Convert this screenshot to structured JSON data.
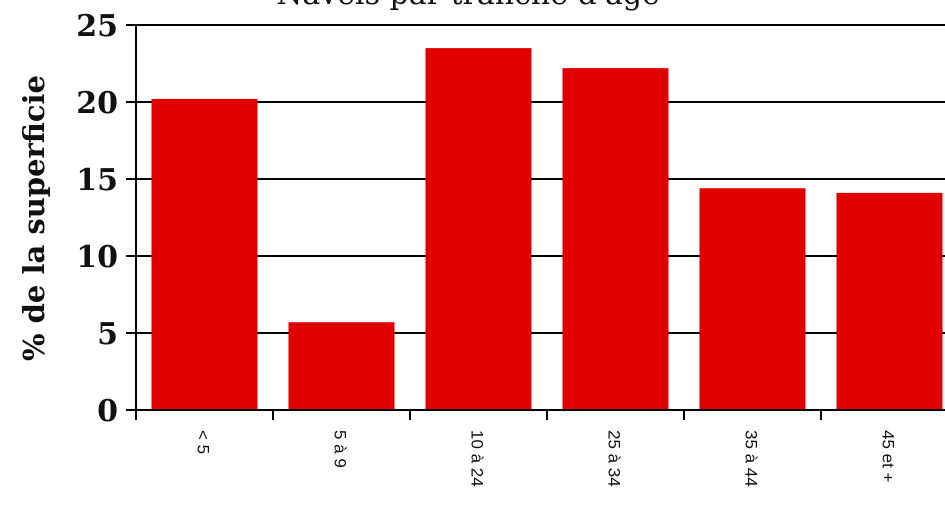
{
  "chart_data": {
    "type": "bar",
    "title": "Navels par tranche d'âge",
    "ylabel": "% de la superficie",
    "xlabel": "",
    "categories": [
      "< 5",
      "5 à 9",
      "10 à 24",
      "25 à 34",
      "35 à 44",
      "45 et +"
    ],
    "values": [
      20.2,
      5.7,
      23.5,
      22.2,
      14.4,
      14.1
    ],
    "ylim": [
      0,
      25
    ],
    "yticks": [
      0,
      5,
      10,
      15,
      20,
      25
    ],
    "grid": true,
    "legend": "none",
    "bar_color": "#e00000"
  }
}
